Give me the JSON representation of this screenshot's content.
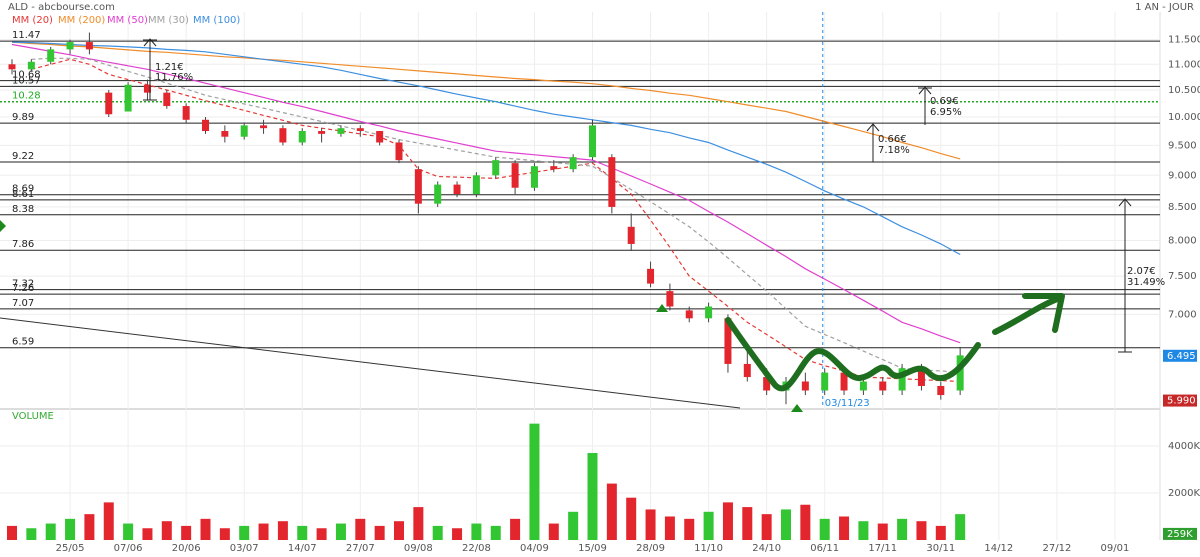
{
  "chart_data": {
    "type": "candlestick",
    "title": "ALD - abcbourse.com",
    "period": "1 AN - JOUR",
    "categories": [
      null,
      null,
      null,
      "25/05",
      null,
      null,
      "07/06",
      null,
      null,
      "20/06",
      null,
      null,
      "03/07",
      null,
      null,
      "14/07",
      null,
      null,
      "27/07",
      null,
      null,
      "09/08",
      null,
      null,
      "22/08",
      null,
      null,
      "04/09",
      null,
      null,
      "15/09",
      null,
      null,
      "28/09",
      null,
      null,
      "11/10",
      null,
      null,
      "24/10",
      null,
      null,
      "06/11",
      null,
      null,
      "17/11",
      null,
      null,
      "30/11",
      null,
      null,
      "14/12",
      null,
      null,
      "27/12",
      null,
      null,
      "09/01",
      null,
      null
    ],
    "open": [
      11.0,
      10.9,
      11.05,
      11.3,
      11.45,
      10.45,
      10.1,
      10.6,
      10.45,
      10.2,
      9.95,
      9.75,
      9.65,
      9.85,
      9.8,
      9.55,
      9.75,
      9.7,
      9.8,
      9.75,
      9.55,
      9.1,
      8.55,
      8.85,
      8.7,
      9.0,
      9.2,
      8.8,
      9.15,
      9.1,
      9.3,
      9.3,
      8.2,
      7.6,
      7.3,
      7.05,
      6.95,
      6.95,
      6.4,
      6.25,
      6.1,
      6.2,
      6.1,
      6.3,
      6.1,
      6.2,
      6.1,
      6.35,
      6.15,
      6.1,
      null,
      null,
      null,
      null,
      null,
      null,
      null,
      null,
      null,
      null
    ],
    "high": [
      11.1,
      11.1,
      11.35,
      11.5,
      11.65,
      10.5,
      10.65,
      10.7,
      10.5,
      10.25,
      10.0,
      9.85,
      9.9,
      9.95,
      9.85,
      9.8,
      9.8,
      9.85,
      9.85,
      9.75,
      9.6,
      9.15,
      8.9,
      8.9,
      9.05,
      9.3,
      9.25,
      9.2,
      9.25,
      9.35,
      9.95,
      9.35,
      8.4,
      7.7,
      7.4,
      7.1,
      7.15,
      7.0,
      6.6,
      6.35,
      6.25,
      6.3,
      6.35,
      6.35,
      6.25,
      6.25,
      6.4,
      6.4,
      6.2,
      6.6,
      null,
      null,
      null,
      null,
      null,
      null,
      null,
      null,
      null,
      null
    ],
    "low": [
      10.8,
      10.85,
      11.0,
      11.2,
      11.2,
      10.0,
      10.1,
      10.3,
      10.15,
      9.9,
      9.7,
      9.55,
      9.6,
      9.7,
      9.5,
      9.5,
      9.55,
      9.65,
      9.65,
      9.5,
      9.2,
      8.4,
      8.5,
      8.65,
      8.65,
      8.95,
      8.7,
      8.75,
      9.05,
      9.05,
      9.25,
      8.4,
      7.85,
      7.35,
      7.05,
      6.9,
      6.9,
      6.3,
      6.2,
      6.05,
      5.95,
      6.05,
      6.05,
      6.05,
      6.05,
      6.05,
      6.05,
      6.1,
      6.0,
      6.05,
      null,
      null,
      null,
      null,
      null,
      null,
      null,
      null,
      null,
      null
    ],
    "close": [
      10.9,
      11.05,
      11.3,
      11.45,
      11.3,
      10.05,
      10.6,
      10.45,
      10.2,
      9.95,
      9.75,
      9.65,
      9.85,
      9.8,
      9.55,
      9.75,
      9.7,
      9.8,
      9.75,
      9.55,
      9.25,
      8.55,
      8.85,
      8.7,
      9.0,
      9.25,
      8.8,
      9.15,
      9.1,
      9.3,
      9.85,
      8.5,
      7.95,
      7.4,
      7.1,
      6.95,
      7.1,
      6.4,
      6.25,
      6.1,
      6.2,
      6.1,
      6.3,
      6.1,
      6.2,
      6.1,
      6.35,
      6.15,
      6.05,
      6.5,
      null,
      null,
      null,
      null,
      null,
      null,
      null,
      null,
      null,
      null
    ],
    "up_color": "#33c633",
    "down_color": "#e3262e",
    "ylim": [
      5.91,
      12.09
    ],
    "log_scale": true,
    "grid": true,
    "yticks": [
      {
        "value": 11.5,
        "label": "11.500"
      },
      {
        "value": 11.0,
        "label": "11.000"
      },
      {
        "value": 10.5,
        "label": "10.500"
      },
      {
        "value": 10.0,
        "label": "10.000"
      },
      {
        "value": 9.5,
        "label": "9.500"
      },
      {
        "value": 9.0,
        "label": "9.000"
      },
      {
        "value": 8.5,
        "label": "8.500"
      },
      {
        "value": 8.0,
        "label": "8.000"
      },
      {
        "value": 7.5,
        "label": "7.500"
      },
      {
        "value": 7.0,
        "label": "7.000"
      }
    ],
    "levels": [
      11.47,
      10.68,
      10.57,
      9.89,
      9.22,
      8.69,
      8.61,
      8.38,
      7.86,
      7.32,
      7.26,
      7.07,
      6.59
    ],
    "current_level": 10.28,
    "current_level_color": "#22aa22",
    "last_price": {
      "value": 6.495,
      "label": "6.495",
      "color": "#1e88e5"
    },
    "low_price": {
      "value": 5.99,
      "label": "5.990",
      "color": "#c62828"
    },
    "marker_date": "03/11/23",
    "measures": [
      {
        "amount": "1.21€",
        "pct": "11.76%"
      },
      {
        "amount": "0.69€",
        "pct": "6.95%"
      },
      {
        "amount": "0.66€",
        "pct": "7.18%"
      },
      {
        "amount": "2.07€",
        "pct": "31.49%"
      }
    ],
    "series": [
      {
        "name": "MM (20)",
        "color": "#e53935",
        "dash": true,
        "values": [
          null,
          10.9,
          11.0,
          11.1,
          11.0,
          10.8,
          10.7,
          10.6,
          10.5,
          10.4,
          10.3,
          10.21,
          10.12,
          10.03,
          9.94,
          9.85,
          9.8,
          9.75,
          9.7,
          9.65,
          9.5,
          9.1,
          8.98,
          8.97,
          8.96,
          8.95,
          9.0,
          9.05,
          9.1,
          9.15,
          9.2,
          8.95,
          8.7,
          8.3,
          7.9,
          7.5,
          7.3,
          7.1,
          6.9,
          6.75,
          6.6,
          6.45,
          6.38,
          6.32,
          6.25,
          6.24,
          6.23,
          6.22,
          6.21,
          6.2,
          null,
          null,
          null,
          null,
          null,
          null,
          null,
          null,
          null,
          null
        ]
      },
      {
        "name": "MM (200)",
        "color": "#f08c2a",
        "dash": false,
        "values": [
          11.45,
          11.42,
          11.4,
          11.37,
          11.35,
          11.32,
          11.29,
          11.26,
          11.24,
          11.21,
          11.18,
          11.15,
          11.13,
          11.1,
          11.08,
          11.05,
          11.02,
          10.99,
          10.96,
          10.93,
          10.9,
          10.87,
          10.84,
          10.81,
          10.78,
          10.75,
          10.72,
          10.7,
          10.67,
          10.65,
          10.62,
          10.58,
          10.53,
          10.49,
          10.44,
          10.4,
          10.34,
          10.28,
          10.22,
          10.16,
          10.1,
          10.01,
          9.92,
          9.83,
          9.74,
          9.65,
          9.55,
          9.46,
          9.36,
          9.27,
          null,
          null,
          null,
          null,
          null,
          null,
          null,
          null,
          null,
          null
        ]
      },
      {
        "name": "MM (50)",
        "color": "#e040d0",
        "dash": false,
        "values": [
          11.4,
          11.33,
          11.26,
          11.19,
          11.11,
          11.04,
          10.97,
          10.9,
          10.81,
          10.72,
          10.63,
          10.54,
          10.45,
          10.36,
          10.27,
          10.19,
          10.1,
          10.01,
          9.92,
          9.84,
          9.75,
          9.68,
          9.61,
          9.54,
          9.47,
          9.4,
          9.37,
          9.34,
          9.31,
          9.28,
          9.25,
          9.12,
          8.99,
          8.86,
          8.73,
          8.6,
          8.43,
          8.27,
          8.1,
          7.93,
          7.77,
          7.6,
          7.46,
          7.32,
          7.18,
          7.04,
          6.9,
          6.82,
          6.73,
          6.65,
          null,
          null,
          null,
          null,
          null,
          null,
          null,
          null,
          null,
          null
        ]
      },
      {
        "name": "MM (30)",
        "color": "#a0a0a0",
        "dash": true,
        "values": [
          null,
          11.1,
          11.12,
          11.12,
          11.1,
          10.98,
          10.86,
          10.75,
          10.63,
          10.52,
          10.4,
          10.32,
          10.24,
          10.16,
          10.08,
          10.0,
          9.92,
          9.84,
          9.76,
          9.68,
          9.6,
          9.54,
          9.48,
          9.42,
          9.36,
          9.3,
          9.27,
          9.24,
          9.21,
          9.18,
          9.15,
          8.96,
          8.77,
          8.58,
          8.39,
          8.2,
          7.98,
          7.75,
          7.52,
          7.3,
          7.07,
          6.85,
          6.75,
          6.65,
          6.55,
          6.45,
          6.35,
          6.33,
          6.32,
          6.3,
          null,
          null,
          null,
          null,
          null,
          null,
          null,
          null,
          null,
          null
        ]
      },
      {
        "name": "MM (100)",
        "color": "#3d8fe0",
        "dash": false,
        "values": [
          11.45,
          11.44,
          11.42,
          11.4,
          11.38,
          11.37,
          11.35,
          11.33,
          11.3,
          11.28,
          11.25,
          11.2,
          11.15,
          11.1,
          11.05,
          11.0,
          10.95,
          10.88,
          10.8,
          10.72,
          10.65,
          10.58,
          10.5,
          10.42,
          10.35,
          10.28,
          10.2,
          10.12,
          10.05,
          10.0,
          9.95,
          9.9,
          9.85,
          9.78,
          9.72,
          9.63,
          9.55,
          9.42,
          9.3,
          9.18,
          9.05,
          8.9,
          8.75,
          8.62,
          8.5,
          8.35,
          8.2,
          8.08,
          7.95,
          7.8,
          null,
          null,
          null,
          null,
          null,
          null,
          null,
          null,
          null,
          null
        ]
      }
    ],
    "volume": {
      "label": "VOLUME",
      "values": [
        600000,
        500000,
        700000,
        900000,
        1100000,
        1600000,
        700000,
        500000,
        800000,
        600000,
        900000,
        500000,
        600000,
        700000,
        800000,
        600000,
        500000,
        700000,
        900000,
        600000,
        800000,
        1400000,
        600000,
        500000,
        700000,
        600000,
        900000,
        4950000,
        700000,
        1200000,
        3700000,
        2400000,
        1800000,
        1300000,
        1000000,
        900000,
        1200000,
        1600000,
        1400000,
        1100000,
        1300000,
        1500000,
        900000,
        1000000,
        800000,
        700000,
        900000,
        800000,
        600000,
        1100000,
        null,
        null,
        null,
        null,
        null,
        null,
        null,
        null,
        null,
        null
      ],
      "ylim": [
        0,
        5530000
      ],
      "yticks": [
        {
          "value": 4000000,
          "label": "4000K"
        },
        {
          "value": 2000000,
          "label": "2000K"
        }
      ],
      "last": {
        "value": 259000,
        "label": "259K",
        "color": "#2e9e2e"
      }
    }
  }
}
